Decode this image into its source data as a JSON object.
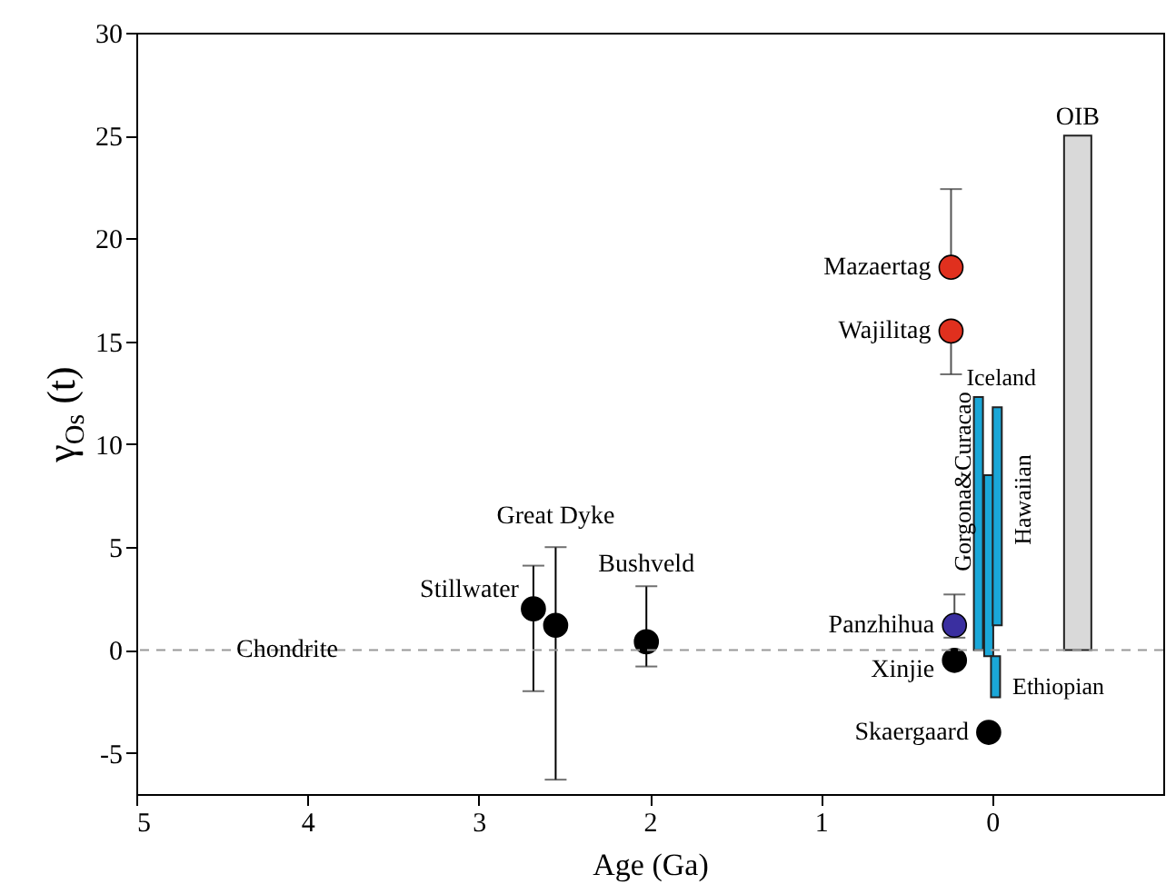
{
  "chart_data": {
    "type": "scatter",
    "xlabel": "Age (Ga)",
    "ylabel": "γ$_{Os}$ (t)",
    "xlim": [
      5,
      -1
    ],
    "xticks": [
      5,
      4,
      3,
      2,
      1,
      0
    ],
    "ylim": [
      -7,
      30
    ],
    "yticks": [
      -5,
      0,
      5,
      10,
      15,
      20,
      25,
      30
    ],
    "grid": false,
    "marker": "circle",
    "series": [
      {
        "color": "#000000",
        "x": [
          2.68,
          2.55,
          2.02,
          0.22,
          0.02
        ],
        "values": [
          2.0,
          1.2,
          0.4,
          -0.5,
          -4.0
        ],
        "errors": [
          [
            -2.0,
            4.1
          ],
          [
            -6.3,
            5.0
          ],
          [
            -0.8,
            3.1
          ],
          null,
          null
        ]
      },
      {
        "color": "#e0301e",
        "x": [
          0.24,
          0.24
        ],
        "values": [
          18.6,
          15.5
        ],
        "errors": [
          [
            18.6,
            22.4
          ],
          [
            13.4,
            15.5
          ]
        ]
      },
      {
        "color": "#3a2fa0",
        "x": [
          0.22
        ],
        "values": [
          1.2
        ],
        "errors": [
          [
            0.6,
            2.7
          ]
        ]
      },
      {
        "type": "bar",
        "color": "#1aa7d8",
        "x": [
          0.08,
          0.02,
          -0.02,
          -0.03
        ],
        "base": [
          0,
          -0.3,
          -0.3,
          1.2
        ],
        "values": [
          12.3,
          8.8,
          -2.0,
          10.6
        ]
      },
      {
        "type": "bar",
        "color": "#d9d9d9",
        "x": [
          -0.5
        ],
        "base": [
          0
        ],
        "values": [
          25
        ]
      }
    ],
    "ref_lines": [
      {
        "axis": "y",
        "value": 0,
        "label": "Chondrite",
        "color": "#999999",
        "line_style": "dashed"
      }
    ],
    "annotations": [
      {
        "text": "Mazaertag",
        "x": 0.24,
        "y": 18.6
      },
      {
        "text": "Wajilitag",
        "x": 0.24,
        "y": 15.5
      },
      {
        "text": "Panzhihua",
        "x": 0.22,
        "y": 1.2
      },
      {
        "text": "Xinjie",
        "x": 0.22,
        "y": -0.5
      },
      {
        "text": "Skaergaard",
        "x": 0.02,
        "y": -4.0
      },
      {
        "text": "Stillwater",
        "x": 2.68,
        "y": 2.03
      },
      {
        "text": "Great Dyke",
        "x": 2.55,
        "y": 5.0
      },
      {
        "text": "Bushveld",
        "x": 2.02,
        "y": 3.1
      },
      "Gorgona&Curacao",
      {
        "text": "Iceland",
        "x": 0.15,
        "y": 13.2
      },
      "Hawaiian",
      "Ethiopian",
      {
        "text": "OIB",
        "x": -0.5,
        "y": 25
      }
    ]
  }
}
